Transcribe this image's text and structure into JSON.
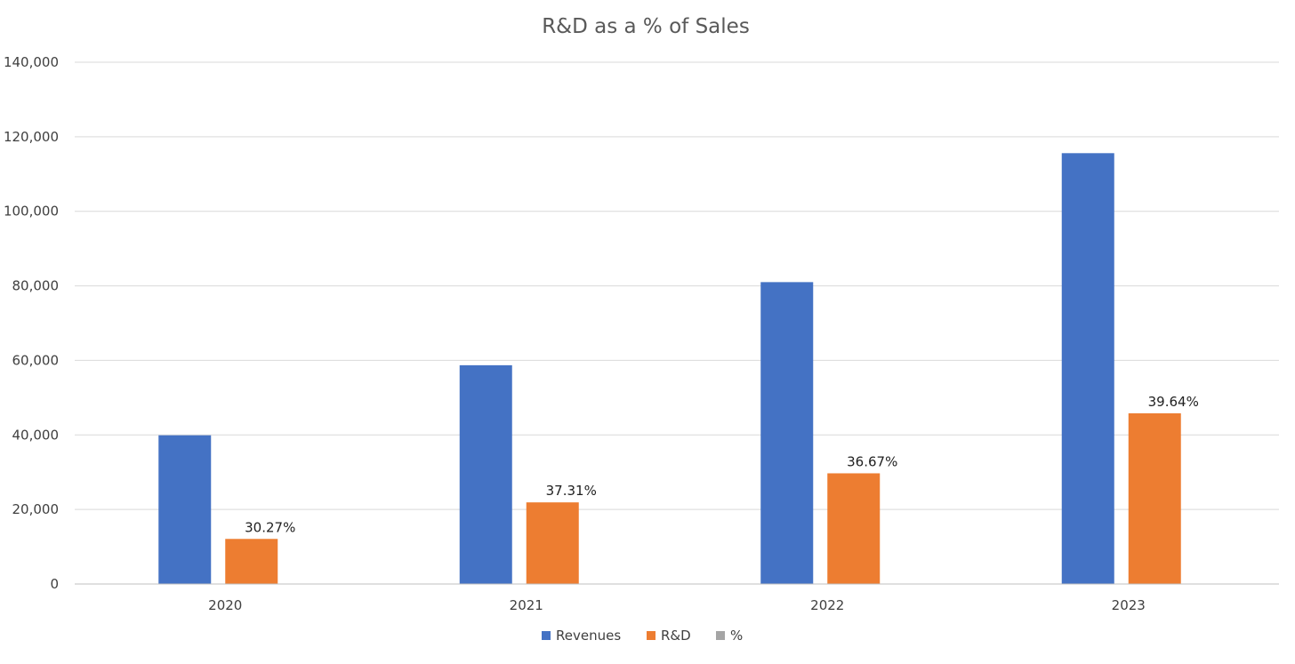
{
  "chart_data": {
    "type": "bar",
    "title": "R&D as a % of Sales",
    "categories": [
      "2020",
      "2021",
      "2022",
      "2023"
    ],
    "series": [
      {
        "name": "Revenues",
        "color": "#4472C4",
        "values": [
          39900,
          58700,
          81000,
          115600
        ]
      },
      {
        "name": "R&D",
        "color": "#ED7D31",
        "values": [
          12100,
          21900,
          29700,
          45800
        ],
        "data_labels": [
          "30.27%",
          "37.31%",
          "36.67%",
          "39.64%"
        ]
      },
      {
        "name": "%",
        "color": "#A5A5A5",
        "values": [
          0.3027,
          0.3731,
          0.3667,
          0.3964
        ]
      }
    ],
    "ylim": [
      0,
      140000
    ],
    "yticks": [
      0,
      20000,
      40000,
      60000,
      80000,
      100000,
      120000,
      140000
    ],
    "ytick_labels": [
      "0",
      "20,000",
      "40,000",
      "60,000",
      "80,000",
      "100,000",
      "120,000",
      "140,000"
    ],
    "grid": true,
    "legend": "bottom",
    "gridline_color": "#D9D9D9",
    "axis_color": "#BFBFBF"
  }
}
